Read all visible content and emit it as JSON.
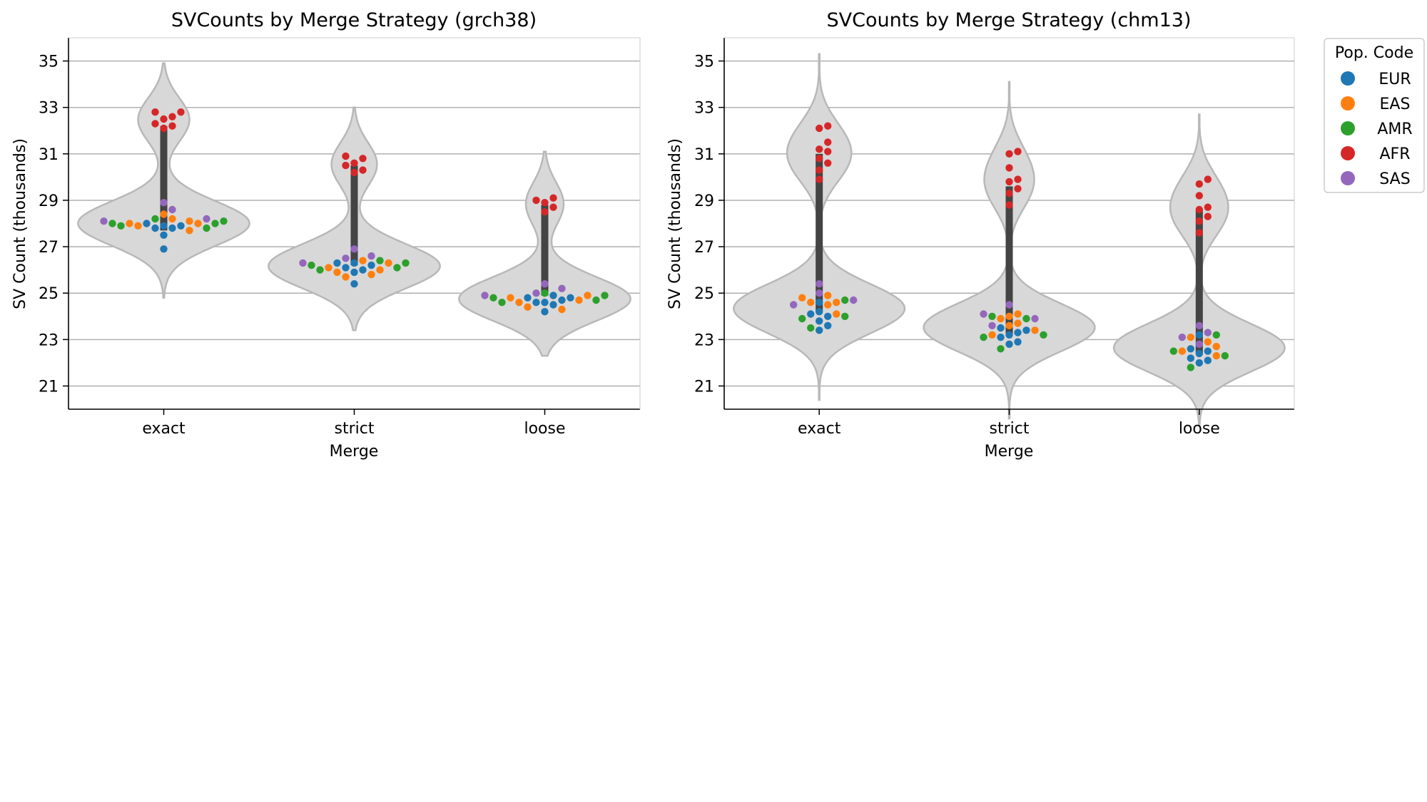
{
  "chart_data": [
    {
      "type": "violin",
      "title": "SVCounts by Merge Strategy (grch38)",
      "xlabel": "Merge",
      "ylabel": "SV Count (thousands)",
      "categories": [
        "exact",
        "strict",
        "loose"
      ],
      "yticks": [
        21,
        23,
        25,
        27,
        29,
        31,
        33,
        35
      ],
      "ylim": [
        20,
        36
      ],
      "grid": "horizontal",
      "violins": [
        {
          "category": "exact",
          "range": [
            24.8,
            34.9
          ],
          "box_q1": 27.7,
          "box_q3": 32.2
        },
        {
          "category": "strict",
          "range": [
            23.4,
            33.0
          ],
          "box_q1": 26.2,
          "box_q3": 30.5
        },
        {
          "category": "loose",
          "range": [
            22.3,
            31.1
          ],
          "box_q1": 24.9,
          "box_q3": 28.8
        }
      ],
      "series": [
        {
          "name": "EUR",
          "points": {
            "exact": [
              26.9,
              27.5,
              27.8,
              27.8,
              27.9,
              27.9,
              28.0
            ],
            "strict": [
              25.4,
              25.9,
              26.0,
              26.1,
              26.2,
              26.3,
              26.3
            ],
            "loose": [
              24.2,
              24.5,
              24.6,
              24.6,
              24.7,
              24.8,
              24.8,
              24.9
            ]
          }
        },
        {
          "name": "EAS",
          "points": {
            "exact": [
              27.7,
              27.9,
              28.0,
              28.0,
              28.1,
              28.2,
              28.4
            ],
            "strict": [
              25.7,
              25.8,
              25.9,
              26.0,
              26.1,
              26.3,
              26.4
            ],
            "loose": [
              24.3,
              24.4,
              24.6,
              24.7,
              24.8,
              24.9
            ]
          }
        },
        {
          "name": "AMR",
          "points": {
            "exact": [
              27.8,
              27.9,
              28.0,
              28.0,
              28.1,
              28.2
            ],
            "strict": [
              26.0,
              26.1,
              26.2,
              26.3,
              26.4
            ],
            "loose": [
              24.6,
              24.7,
              24.8,
              24.9,
              25.0
            ]
          }
        },
        {
          "name": "AFR",
          "points": {
            "exact": [
              32.1,
              32.2,
              32.3,
              32.5,
              32.6,
              32.8,
              32.8
            ],
            "strict": [
              30.2,
              30.3,
              30.5,
              30.6,
              30.8,
              30.9
            ],
            "loose": [
              28.5,
              28.7,
              28.9,
              29.0,
              29.1
            ]
          }
        },
        {
          "name": "SAS",
          "points": {
            "exact": [
              28.1,
              28.2,
              28.6,
              28.9
            ],
            "strict": [
              26.3,
              26.5,
              26.6,
              26.9
            ],
            "loose": [
              24.9,
              25.0,
              25.2,
              25.4
            ]
          }
        }
      ]
    },
    {
      "type": "violin",
      "title": "SVCounts by Merge Strategy (chm13)",
      "xlabel": "Merge",
      "ylabel": "SV Count (thousands)",
      "categories": [
        "exact",
        "strict",
        "loose"
      ],
      "yticks": [
        21,
        23,
        25,
        27,
        29,
        31,
        33,
        35
      ],
      "ylim": [
        20,
        36
      ],
      "grid": "horizontal",
      "violins": [
        {
          "category": "exact",
          "range": [
            20.4,
            35.3
          ],
          "box_q1": 24.2,
          "box_q3": 31.0
        },
        {
          "category": "strict",
          "range": [
            19.6,
            34.1
          ],
          "box_q1": 23.2,
          "box_q3": 29.6
        },
        {
          "category": "loose",
          "range": [
            19.3,
            32.7
          ],
          "box_q1": 22.4,
          "box_q3": 28.6
        }
      ],
      "series": [
        {
          "name": "EUR",
          "points": {
            "exact": [
              23.4,
              23.6,
              23.8,
              24.0,
              24.1,
              24.2,
              24.6
            ],
            "strict": [
              22.8,
              22.9,
              23.1,
              23.2,
              23.3,
              23.4,
              23.5
            ],
            "loose": [
              22.0,
              22.1,
              22.2,
              22.4,
              22.5,
              22.6,
              23.2
            ]
          }
        },
        {
          "name": "EAS",
          "points": {
            "exact": [
              24.1,
              24.5,
              24.6,
              24.6,
              24.8,
              24.9
            ],
            "strict": [
              23.2,
              23.4,
              23.6,
              23.7,
              23.9,
              24.0,
              24.1
            ],
            "loose": [
              22.3,
              22.5,
              22.7,
              22.9,
              23.1
            ]
          }
        },
        {
          "name": "AMR",
          "points": {
            "exact": [
              23.5,
              23.9,
              24.0,
              24.7
            ],
            "strict": [
              22.6,
              23.1,
              23.2,
              23.9,
              24.0
            ],
            "loose": [
              21.8,
              22.3,
              22.5,
              23.2
            ]
          }
        },
        {
          "name": "AFR",
          "points": {
            "exact": [
              29.9,
              30.3,
              30.6,
              30.8,
              31.1,
              31.2,
              31.5,
              32.1,
              32.2
            ],
            "strict": [
              28.8,
              29.3,
              29.5,
              29.8,
              29.9,
              30.4,
              31.0,
              31.1
            ],
            "loose": [
              27.6,
              28.1,
              28.3,
              28.6,
              28.7,
              29.2,
              29.7,
              29.9
            ]
          }
        },
        {
          "name": "SAS",
          "points": {
            "exact": [
              24.5,
              24.7,
              25.0,
              25.4
            ],
            "strict": [
              23.6,
              23.9,
              24.1,
              24.5
            ],
            "loose": [
              22.8,
              23.1,
              23.3,
              23.6
            ]
          }
        }
      ]
    }
  ],
  "legend": {
    "title": "Pop. Code",
    "placement": "outside-right",
    "items": [
      {
        "name": "EUR",
        "color": "#1f77b4"
      },
      {
        "name": "EAS",
        "color": "#ff7f0e"
      },
      {
        "name": "AMR",
        "color": "#2ca02c"
      },
      {
        "name": "AFR",
        "color": "#d62728"
      },
      {
        "name": "SAS",
        "color": "#9467bd"
      }
    ]
  },
  "colors": {
    "violin_fill": "#d8d8d8",
    "violin_edge": "#b8b8b8",
    "box": "#444444",
    "grid": "#b0b0b0"
  }
}
